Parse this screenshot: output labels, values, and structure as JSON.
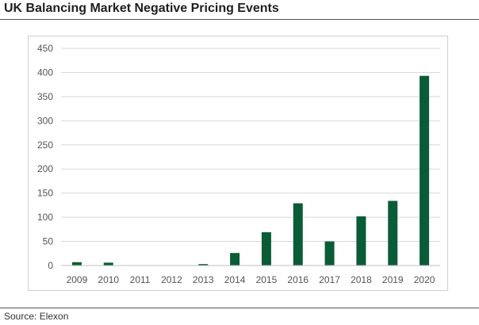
{
  "header": {
    "title": "UK Balancing Market Negative Pricing Events"
  },
  "footer": {
    "source": "Source: Elexon"
  },
  "chart_data": {
    "type": "bar",
    "title": "UK Balancing Market Negative Pricing Events",
    "xlabel": "",
    "ylabel": "",
    "categories": [
      "2009",
      "2010",
      "2011",
      "2012",
      "2013",
      "2014",
      "2015",
      "2016",
      "2017",
      "2018",
      "2019",
      "2020"
    ],
    "values": [
      7,
      6,
      0,
      0,
      3,
      26,
      69,
      129,
      50,
      102,
      134,
      393
    ],
    "ylim": [
      0,
      450
    ],
    "yticks": [
      0,
      50,
      100,
      150,
      200,
      250,
      300,
      350,
      400,
      450
    ],
    "grid": true,
    "legend": "none",
    "bar_color": "#0a5c36"
  }
}
